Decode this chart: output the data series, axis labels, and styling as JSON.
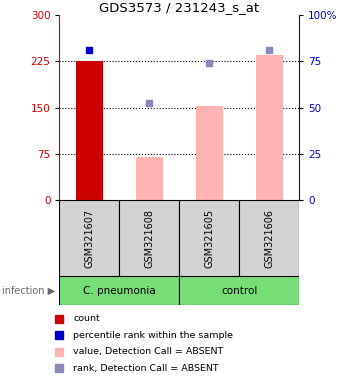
{
  "title": "GDS3573 / 231243_s_at",
  "samples": [
    "GSM321607",
    "GSM321608",
    "GSM321605",
    "GSM321606"
  ],
  "bar_values": [
    226,
    70,
    152,
    235
  ],
  "bar_colors": [
    "#cc0000",
    "#ffb3b3",
    "#ffb3b3",
    "#ffb3b3"
  ],
  "dot_values": [
    243,
    157,
    222,
    243
  ],
  "dot_colors": [
    "#0000cc",
    "#8888bb",
    "#8888bb",
    "#8888bb"
  ],
  "ylim_left": [
    0,
    300
  ],
  "ylim_right": [
    0,
    100
  ],
  "yticks_left": [
    0,
    75,
    150,
    225,
    300
  ],
  "yticks_right": [
    0,
    25,
    50,
    75,
    100
  ],
  "groups": [
    {
      "label": "C. pneumonia",
      "samples": [
        0,
        1
      ],
      "color": "#77dd77"
    },
    {
      "label": "control",
      "samples": [
        2,
        3
      ],
      "color": "#77dd77"
    }
  ],
  "group_label": "infection",
  "legend_items": [
    {
      "color": "#cc0000",
      "label": "count"
    },
    {
      "color": "#0000cc",
      "label": "percentile rank within the sample"
    },
    {
      "color": "#ffb3b3",
      "label": "value, Detection Call = ABSENT"
    },
    {
      "color": "#8888bb",
      "label": "rank, Detection Call = ABSENT"
    }
  ],
  "dotted_lines": [
    75,
    150,
    225
  ],
  "bar_width": 0.45,
  "background_chart": "#ffffff",
  "background_label": "#d3d3d3",
  "left_axis_color": "#cc0000",
  "right_axis_color": "#0000cc"
}
